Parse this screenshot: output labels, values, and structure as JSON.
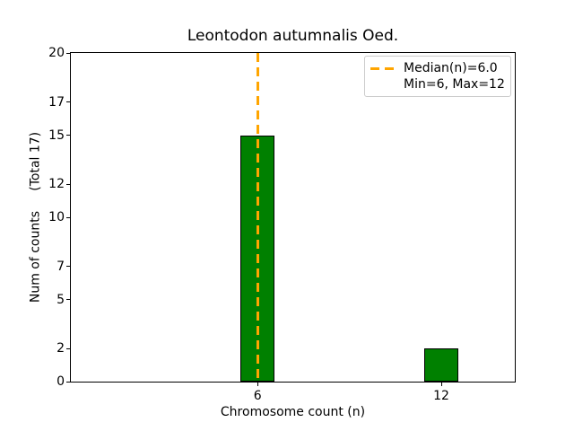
{
  "figure": {
    "background": "#ffffff",
    "text_color": "#000000"
  },
  "chart_data": {
    "type": "bar",
    "title": "Leontodon autumnalis Oed.",
    "xlabel": "Chromosome count (n)",
    "ylabel": "Num of counts     (Total 17)",
    "categories": [
      6,
      12
    ],
    "values": [
      15,
      2
    ],
    "total_counts": 17,
    "bar_color": "#008000",
    "bar_edge_color": "#000000",
    "bar_width_units": 1.1,
    "median_line": {
      "x": 6.0,
      "color": "#FFA500",
      "style": "dashed"
    },
    "legend": {
      "position": "upper-right",
      "entries": [
        {
          "label": "Median(n)=6.0",
          "sample": "orange-dashed-line"
        },
        {
          "label": "Min=6, Max=12",
          "sample": "none"
        }
      ]
    },
    "xticks": [
      6,
      12
    ],
    "yticks": [
      0,
      2,
      5,
      7,
      10,
      12,
      15,
      17,
      20
    ],
    "xlim": [
      -0.1,
      14.4
    ],
    "ylim": [
      0,
      20
    ],
    "grid": false,
    "spines": "all-black"
  }
}
